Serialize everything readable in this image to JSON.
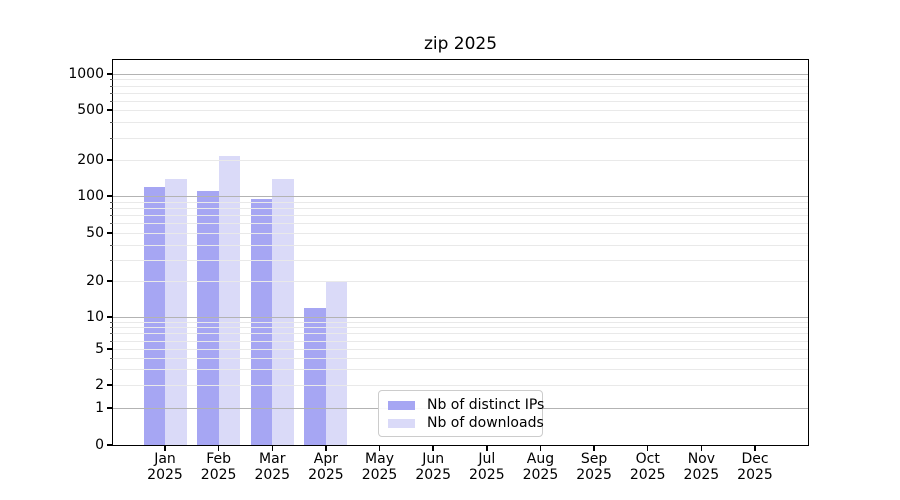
{
  "title": "zip 2025",
  "chart_data": {
    "type": "bar",
    "title": "zip 2025",
    "categories": [
      "Jan",
      "Feb",
      "Mar",
      "Apr",
      "May",
      "Jun",
      "Jul",
      "Aug",
      "Sep",
      "Oct",
      "Nov",
      "Dec"
    ],
    "year": "2025",
    "series": [
      {
        "name": "Nb of distinct IPs",
        "color": "#a6a6f3",
        "values": [
          120,
          110,
          95,
          12,
          0,
          0,
          0,
          0,
          0,
          0,
          0,
          0
        ]
      },
      {
        "name": "Nb of downloads",
        "color": "#dadaf8",
        "values": [
          140,
          215,
          140,
          20,
          0,
          0,
          0,
          0,
          0,
          0,
          0,
          0
        ]
      }
    ],
    "y_ticks": [
      0,
      1,
      2,
      5,
      10,
      20,
      50,
      100,
      200,
      500,
      1000
    ],
    "y_scale": "log-like with 0 baseline",
    "ylim": [
      0,
      1300
    ],
    "xlabel": "",
    "ylabel": "",
    "grid": "horizontal major and minor lines",
    "legend_position": "inside bottom, left of center",
    "colors": {
      "major_grid": "#b3b3b3",
      "minor_grid": "#e9e9e9",
      "spine": "#000000",
      "background": "#ffffff"
    }
  }
}
